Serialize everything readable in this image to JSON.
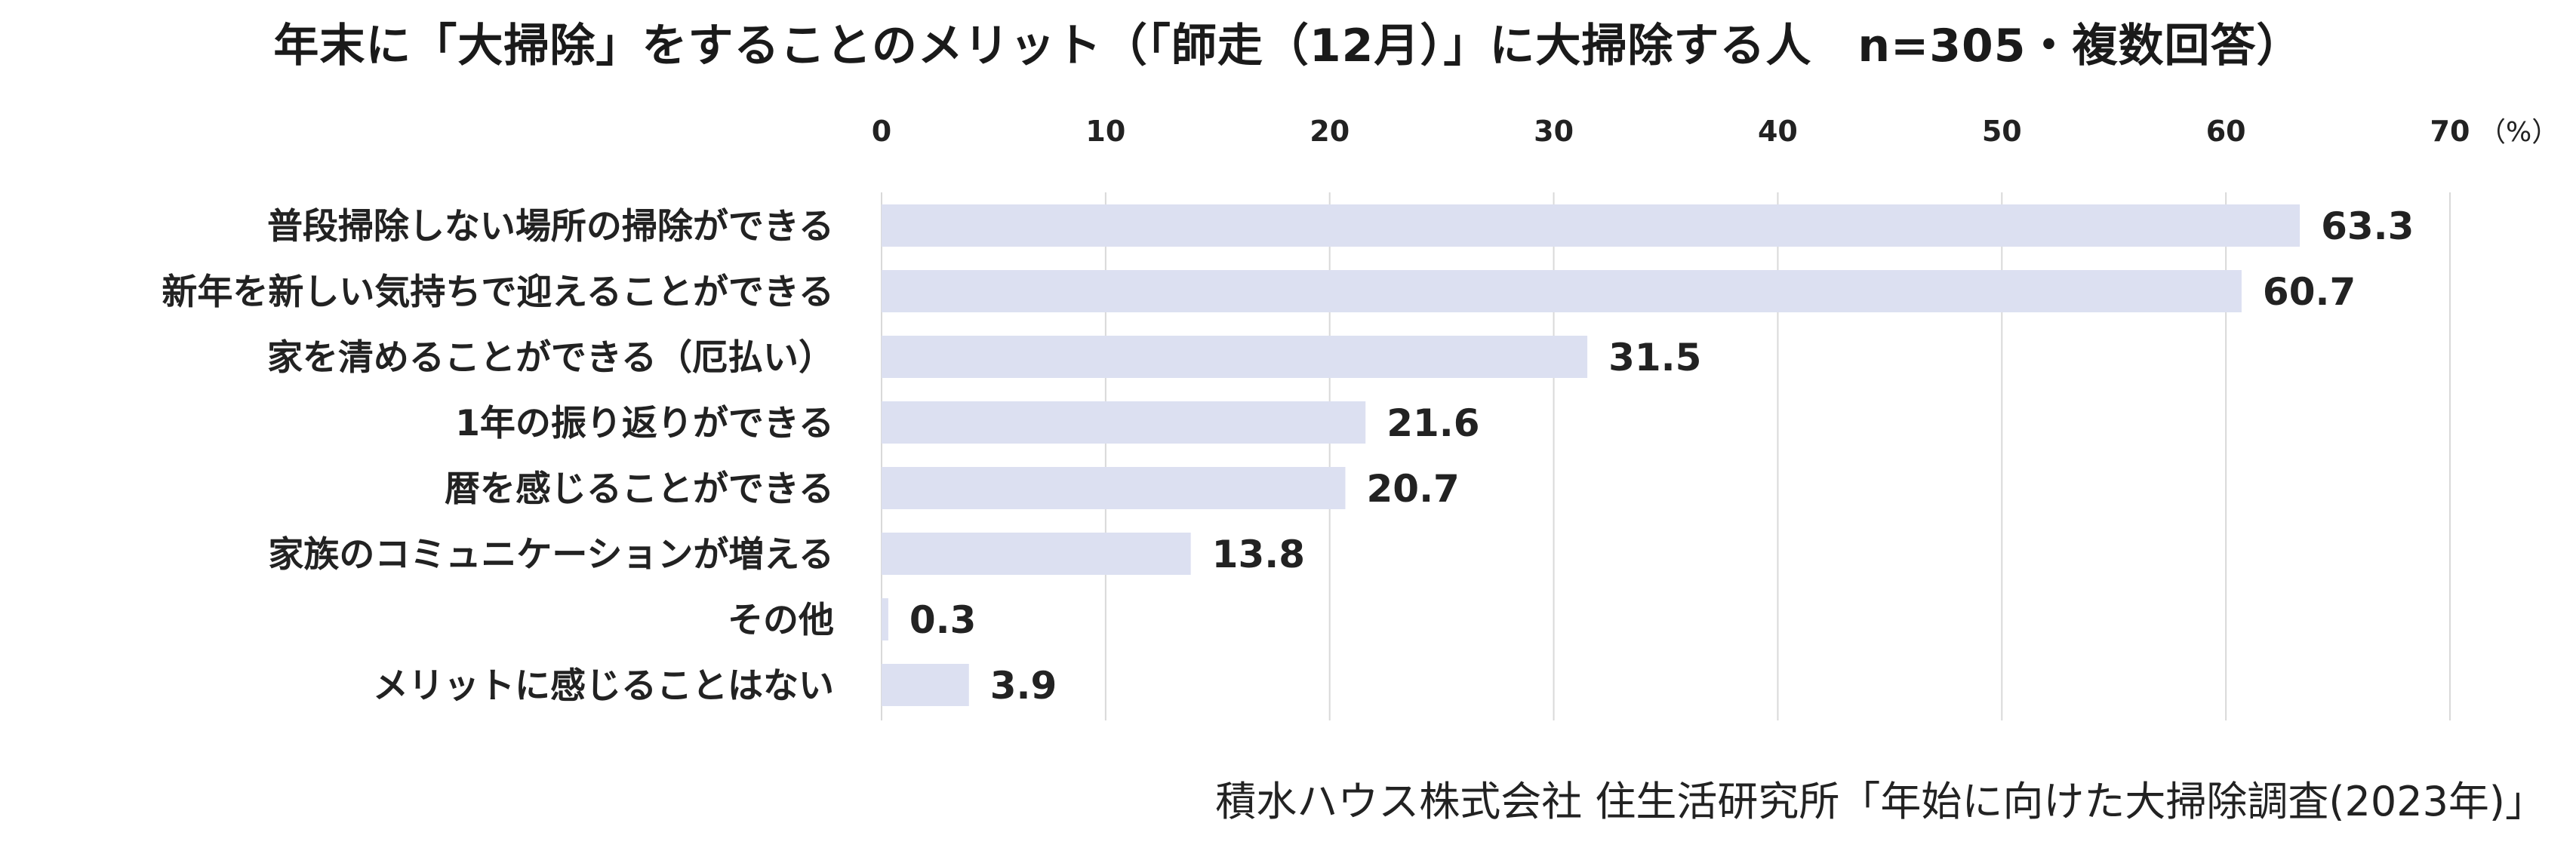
{
  "chart_data": {
    "type": "bar",
    "orientation": "horizontal",
    "title": "年末に「大掃除」をすることのメリット（「師走（12月）」に大掃除する人　n=305・複数回答）",
    "unit": "（%）",
    "categories": [
      "普段掃除しない場所の掃除ができる",
      "新年を新しい気持ちで迎えることができる",
      "家を清めることができる（厄払い）",
      "1年の振り返りができる",
      "暦を感じることができる",
      "家族のコミュニケーションが増える",
      "その他",
      "メリットに感じることはない"
    ],
    "values": [
      63.3,
      60.7,
      31.5,
      21.6,
      20.7,
      13.8,
      0.3,
      3.9
    ],
    "value_labels": [
      "63.3",
      "60.7",
      "31.5",
      "21.6",
      "20.7",
      "13.8",
      "0.3",
      "3.9"
    ],
    "xlim": [
      0,
      70
    ],
    "xticks": [
      0,
      10,
      20,
      30,
      40,
      50,
      60,
      70
    ],
    "xtick_labels": [
      "0",
      "10",
      "20",
      "30",
      "40",
      "50",
      "60",
      "70"
    ],
    "axis_position": "top",
    "grid": true,
    "legend": "none",
    "bar_color": "#dce0f1",
    "grid_color": "#d9d9d9"
  },
  "source": "積水ハウス株式会社 住生活研究所「年始に向けた大掃除調査(2023年)」"
}
